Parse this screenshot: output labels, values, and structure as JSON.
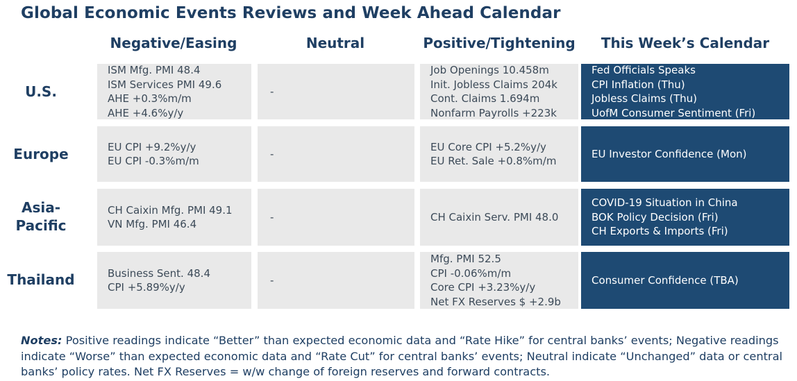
{
  "title": "Global Economic Events Reviews and Week Ahead Calendar",
  "columns": {
    "negative": "Negative/Easing",
    "neutral": "Neutral",
    "positive": "Positive/Tightening",
    "calendar": "This Week’s Calendar"
  },
  "rows": [
    {
      "label": "U.S.",
      "negative": [
        "ISM Mfg. PMI 48.4",
        "ISM Services PMI 49.6",
        "AHE +0.3%m/m",
        "AHE +4.6%y/y"
      ],
      "neutral": [
        "-"
      ],
      "positive": [
        "Job Openings 10.458m",
        "Init. Jobless Claims 204k",
        "Cont. Claims 1.694m",
        "Nonfarm Payrolls +223k"
      ],
      "calendar": [
        "Fed Officials Speaks",
        "CPI Inflation (Thu)",
        "Jobless Claims (Thu)",
        "UofM Consumer Sentiment (Fri)"
      ]
    },
    {
      "label": "Europe",
      "negative": [
        "EU CPI +9.2%y/y",
        "EU CPI -0.3%m/m"
      ],
      "neutral": [
        "-"
      ],
      "positive": [
        "EU Core CPI +5.2%y/y",
        "EU Ret. Sale +0.8%m/m"
      ],
      "calendar": [
        "EU Investor Confidence (Mon)"
      ]
    },
    {
      "label_lines": [
        "Asia-",
        "Pacific"
      ],
      "negative": [
        "CH Caixin Mfg. PMI 49.1",
        "VN Mfg. PMI 46.4"
      ],
      "neutral": [
        "-"
      ],
      "positive": [
        "CH Caixin Serv. PMI 48.0"
      ],
      "calendar": [
        "COVID-19 Situation in China",
        "BOK Policy Decision (Fri)",
        "CH Exports & Imports (Fri)"
      ]
    },
    {
      "label": "Thailand",
      "negative": [
        "Business Sent. 48.4",
        "CPI +5.89%y/y"
      ],
      "neutral": [
        "-"
      ],
      "positive": [
        "Mfg. PMI 52.5",
        "CPI -0.06%m/m",
        "Core CPI +3.23%y/y",
        "Net FX Reserves $ +2.9b"
      ],
      "calendar": [
        "Consumer Confidence (TBA)"
      ]
    }
  ],
  "notes": {
    "label": "Notes:",
    "text": " Positive readings indicate “Better” than expected economic data and “Rate Hike” for central banks’ events; Negative readings indicate “Worse” than expected economic data and “Rate Cut” for central banks’ events; Neutral indicate “Unchanged” data or central banks’ policy rates. Net FX Reserves = w/w change of foreign reserves and forward contracts."
  },
  "colors": {
    "heading": "#1f3f63",
    "cell_bg": "#e9e9e9",
    "calendar_bg": "#1e4a73",
    "calendar_text": "#ffffff"
  }
}
